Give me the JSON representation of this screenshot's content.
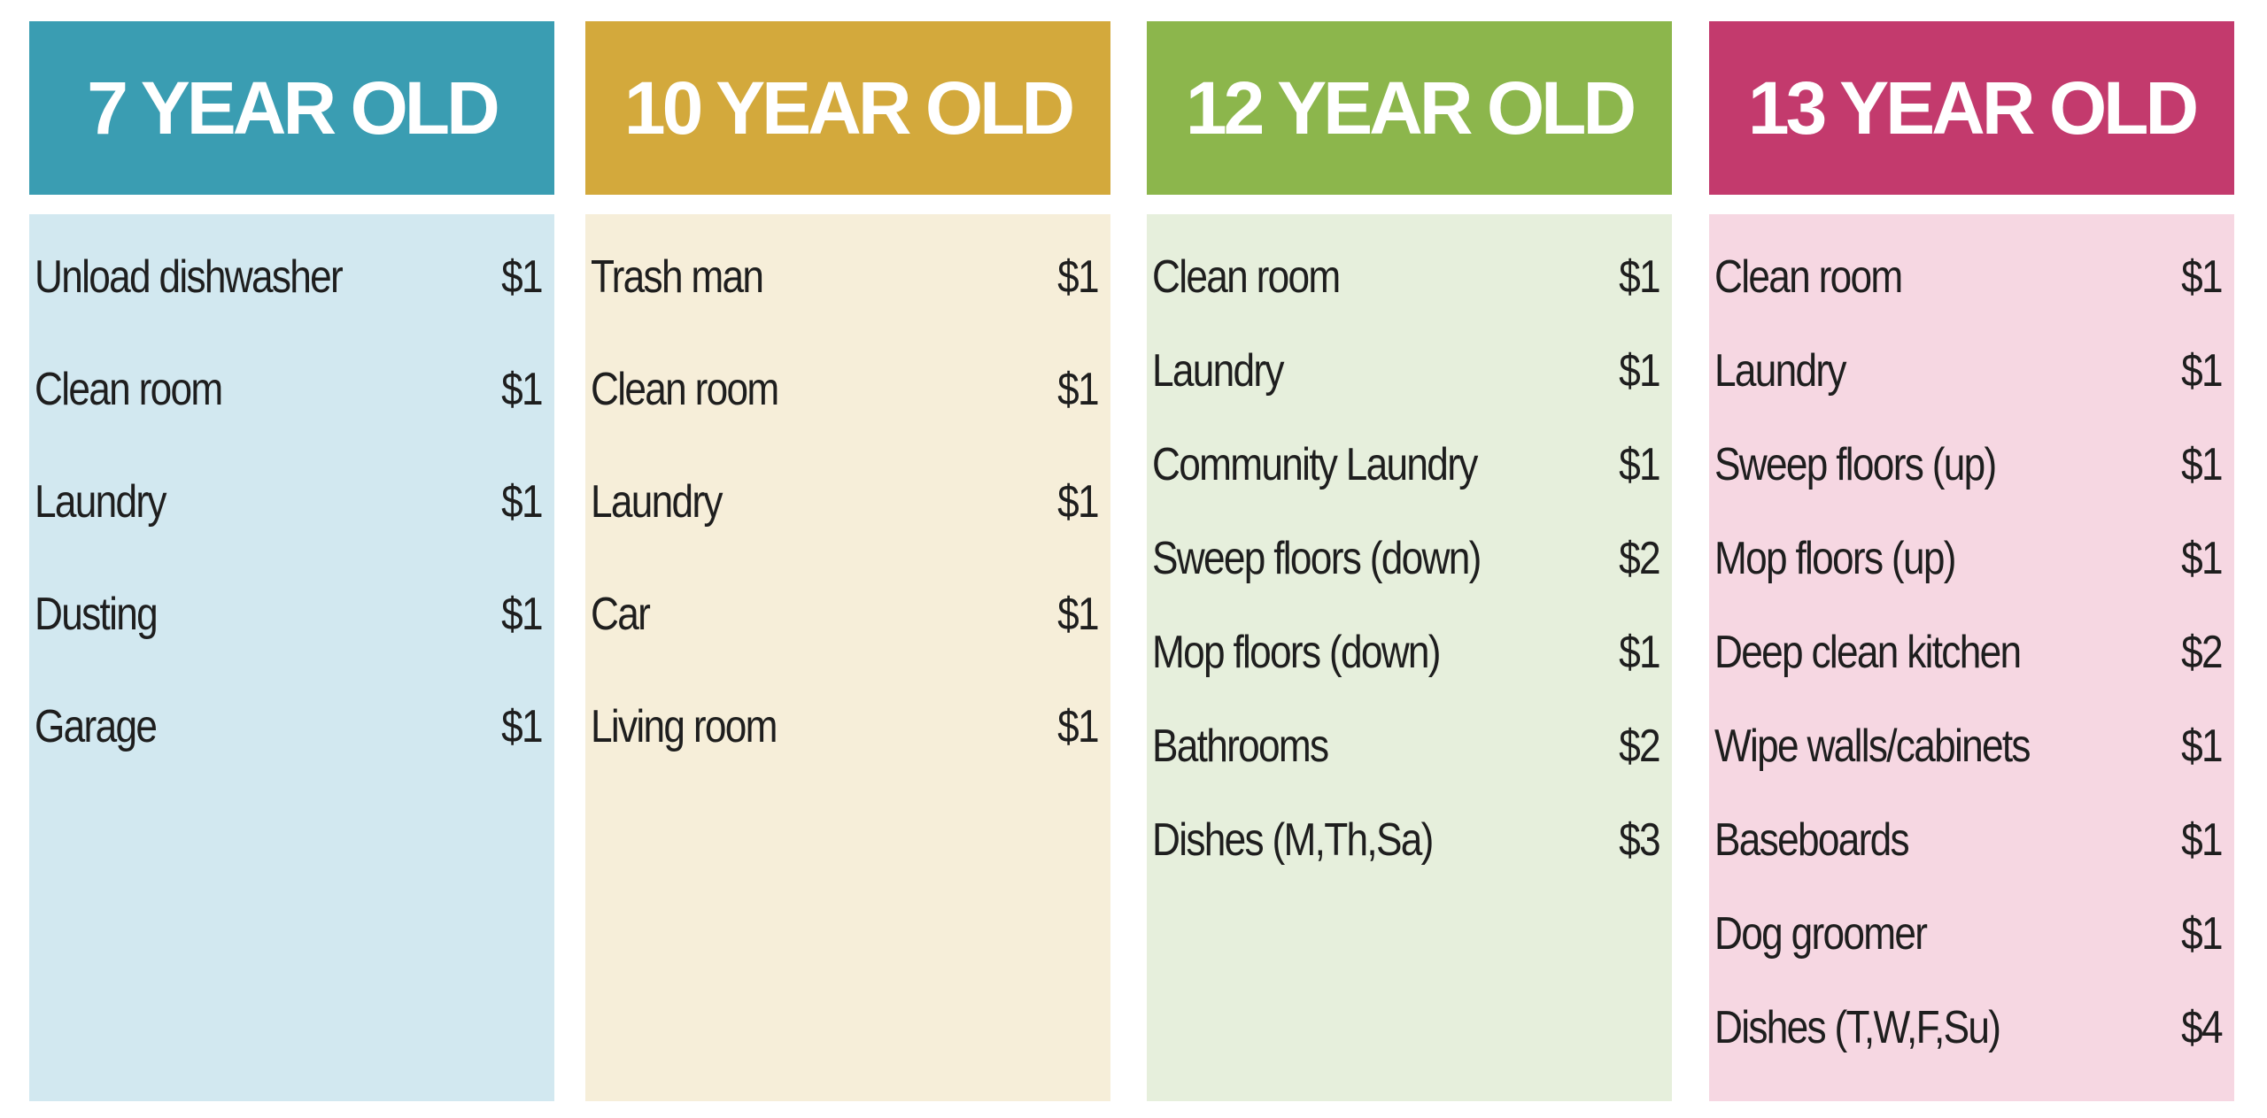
{
  "columns": [
    {
      "title": "7 YEAR OLD",
      "items": [
        {
          "task": "Unload dishwasher",
          "pay": "$1"
        },
        {
          "task": "Clean room",
          "pay": "$1"
        },
        {
          "task": "Laundry",
          "pay": "$1"
        },
        {
          "task": "Dusting",
          "pay": "$1"
        },
        {
          "task": "Garage",
          "pay": "$1"
        }
      ]
    },
    {
      "title": "10 YEAR OLD",
      "items": [
        {
          "task": "Trash man",
          "pay": "$1"
        },
        {
          "task": "Clean room",
          "pay": "$1"
        },
        {
          "task": "Laundry",
          "pay": "$1"
        },
        {
          "task": "Car",
          "pay": "$1"
        },
        {
          "task": "Living room",
          "pay": "$1"
        }
      ]
    },
    {
      "title": "12 YEAR OLD",
      "items": [
        {
          "task": "Clean room",
          "pay": "$1"
        },
        {
          "task": "Laundry",
          "pay": "$1"
        },
        {
          "task": "Community Laundry",
          "pay": "$1"
        },
        {
          "task": "Sweep floors (down)",
          "pay": "$2"
        },
        {
          "task": "Mop floors (down)",
          "pay": "$1"
        },
        {
          "task": "Bathrooms",
          "pay": "$2"
        },
        {
          "task": "Dishes (M,Th,Sa)",
          "pay": "$3"
        }
      ]
    },
    {
      "title": "13 YEAR OLD",
      "items": [
        {
          "task": "Clean room",
          "pay": "$1"
        },
        {
          "task": "Laundry",
          "pay": "$1"
        },
        {
          "task": "Sweep floors (up)",
          "pay": "$1"
        },
        {
          "task": "Mop floors (up)",
          "pay": "$1"
        },
        {
          "task": "Deep clean kitchen",
          "pay": "$2"
        },
        {
          "task": "Wipe walls/cabinets",
          "pay": "$1"
        },
        {
          "task": "Baseboards",
          "pay": "$1"
        },
        {
          "task": "Dog groomer",
          "pay": "$1"
        },
        {
          "task": "Dishes (T,W,F,Su)",
          "pay": "$4"
        }
      ]
    }
  ]
}
